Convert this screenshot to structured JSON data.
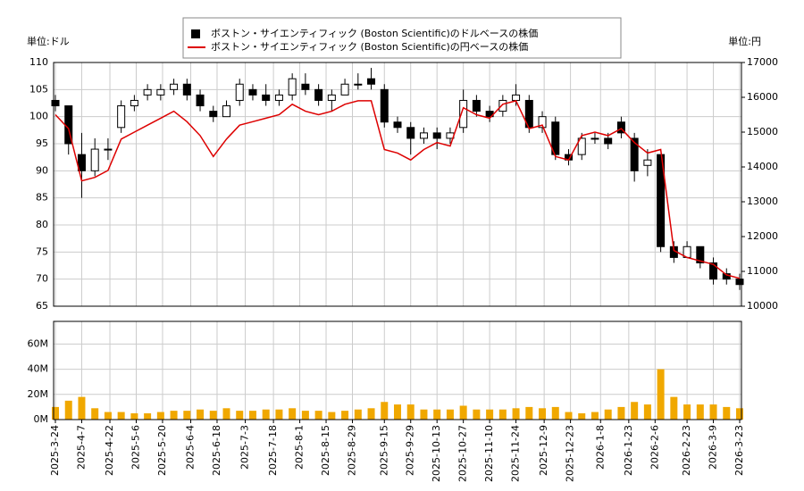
{
  "chart_data": [
    {
      "type": "candlestick",
      "ylabel": "単位:ドル",
      "y2label": "単位:円",
      "x": [
        "2025-3-24",
        "2025-3-31",
        "2025-4-7",
        "2025-4-14",
        "2025-4-21",
        "2025-4-28",
        "2025-5-5",
        "2025-5-12",
        "2025-5-19",
        "2025-5-26",
        "2025-6-2",
        "2025-6-9",
        "2025-6-16",
        "2025-6-23",
        "2025-6-30",
        "2025-7-7",
        "2025-7-14",
        "2025-7-21",
        "2025-7-28",
        "2025-8-4",
        "2025-8-11",
        "2025-8-18",
        "2025-8-25",
        "2025-9-1",
        "2025-9-8",
        "2025-9-15",
        "2025-9-22",
        "2025-9-29",
        "2025-10-6",
        "2025-10-13",
        "2025-10-20",
        "2025-10-27",
        "2025-11-3",
        "2025-11-10",
        "2025-11-17",
        "2025-11-24",
        "2025-12-1",
        "2025-12-8",
        "2025-12-15",
        "2025-12-22",
        "2025-12-29",
        "2026-1-5",
        "2026-1-12",
        "2026-1-19",
        "2026-1-26",
        "2026-2-2",
        "2026-2-9",
        "2026-2-16",
        "2026-2-23",
        "2026-3-2",
        "2026-3-9",
        "2026-3-16",
        "2026-3-23"
      ],
      "xlim": [
        "2025-3-24",
        "2026-3-23"
      ],
      "ylim": [
        65,
        110
      ],
      "yticks": [
        65,
        70,
        75,
        80,
        85,
        90,
        95,
        100,
        105,
        110
      ],
      "y2lim": [
        10000,
        17000
      ],
      "y2ticks": [
        10000,
        11000,
        12000,
        13000,
        14000,
        15000,
        16000,
        17000
      ],
      "grid": true,
      "series": [
        {
          "name": "ボストン・サイエンティフィック (Boston Scientific)のドルベースの株価",
          "color": "#000000",
          "open": [
            103,
            102,
            93,
            90,
            94,
            98,
            102,
            104,
            104,
            105,
            106,
            104,
            101,
            100,
            103,
            105,
            104,
            103,
            104,
            106,
            105,
            103,
            104,
            106,
            107,
            105,
            99,
            98,
            96,
            97,
            96,
            98,
            103,
            101,
            101,
            103,
            103,
            98,
            99,
            93,
            93,
            96,
            96,
            99,
            96,
            91,
            93,
            76,
            74,
            76,
            73,
            71,
            70
          ],
          "high": [
            104,
            102,
            97,
            96,
            96,
            103,
            104,
            106,
            106,
            107,
            107,
            105,
            102,
            103,
            107,
            106,
            106,
            105,
            108,
            108,
            106,
            105,
            107,
            108,
            109,
            106,
            100,
            99,
            98,
            98,
            98,
            105,
            104,
            102,
            104,
            106,
            104,
            101,
            100,
            94,
            97,
            97,
            97,
            100,
            97,
            94,
            93,
            77,
            77,
            76,
            74,
            72,
            71
          ],
          "low": [
            101,
            93,
            85,
            89,
            92,
            97,
            101,
            103,
            103,
            104,
            103,
            101,
            99,
            100,
            102,
            103,
            102,
            102,
            103,
            104,
            102,
            101,
            104,
            105,
            105,
            98,
            97,
            93,
            95,
            94,
            95,
            97,
            100,
            99,
            100,
            102,
            97,
            97,
            92,
            91,
            92,
            95,
            94,
            96,
            88,
            89,
            75,
            73,
            74,
            72,
            69,
            69,
            68
          ],
          "close": [
            102,
            95,
            90,
            94,
            94,
            102,
            103,
            105,
            105,
            106,
            104,
            102,
            100,
            102,
            106,
            104,
            103,
            104,
            107,
            105,
            103,
            104,
            106,
            106,
            106,
            99,
            98,
            96,
            97,
            96,
            97,
            103,
            101,
            100,
            103,
            104,
            98,
            100,
            93,
            92,
            96,
            96,
            95,
            97,
            90,
            92,
            76,
            74,
            76,
            73,
            70,
            70,
            69
          ]
        },
        {
          "name": "ボストン・サイエンティフィック (Boston Scientific)の円ベースの株価",
          "color": "#dd0000",
          "axis": "y2",
          "values": [
            15500,
            15100,
            13600,
            13700,
            13900,
            14800,
            15000,
            15200,
            15400,
            15600,
            15300,
            14900,
            14300,
            14800,
            15200,
            15300,
            15400,
            15500,
            15800,
            15600,
            15500,
            15600,
            15800,
            15900,
            15900,
            14500,
            14400,
            14200,
            14500,
            14700,
            14600,
            15700,
            15500,
            15400,
            15800,
            15900,
            15100,
            15200,
            14300,
            14200,
            14900,
            15000,
            14900,
            15100,
            14700,
            14400,
            14500,
            11600,
            11400,
            11300,
            11200,
            10900,
            10800
          ]
        }
      ]
    },
    {
      "type": "bar",
      "x": [
        "2025-3-24",
        "2025-3-31",
        "2025-4-7",
        "2025-4-14",
        "2025-4-21",
        "2025-4-28",
        "2025-5-5",
        "2025-5-12",
        "2025-5-19",
        "2025-5-26",
        "2025-6-2",
        "2025-6-9",
        "2025-6-16",
        "2025-6-23",
        "2025-6-30",
        "2025-7-7",
        "2025-7-14",
        "2025-7-21",
        "2025-7-28",
        "2025-8-4",
        "2025-8-11",
        "2025-8-18",
        "2025-8-25",
        "2025-9-1",
        "2025-9-8",
        "2025-9-15",
        "2025-9-22",
        "2025-9-29",
        "2025-10-6",
        "2025-10-13",
        "2025-10-20",
        "2025-10-27",
        "2025-11-3",
        "2025-11-10",
        "2025-11-17",
        "2025-11-24",
        "2025-12-1",
        "2025-12-8",
        "2025-12-15",
        "2025-12-22",
        "2025-12-29",
        "2026-1-5",
        "2026-1-12",
        "2026-1-19",
        "2026-1-26",
        "2026-2-2",
        "2026-2-9",
        "2026-2-16",
        "2026-2-23",
        "2026-3-2",
        "2026-3-9",
        "2026-3-16",
        "2026-3-23"
      ],
      "xlim": [
        "2025-3-24",
        "2026-3-23"
      ],
      "values": [
        10000000,
        15000000,
        18000000,
        9000000,
        6000000,
        6000000,
        5000000,
        5000000,
        6000000,
        7000000,
        7000000,
        8000000,
        7000000,
        9000000,
        7000000,
        7000000,
        8000000,
        8000000,
        9000000,
        7000000,
        7000000,
        6000000,
        7000000,
        8000000,
        9000000,
        14000000,
        12000000,
        12000000,
        8000000,
        8000000,
        8000000,
        11000000,
        8000000,
        8000000,
        8000000,
        9000000,
        10000000,
        9000000,
        10000000,
        6000000,
        5000000,
        6000000,
        8000000,
        10000000,
        14000000,
        12000000,
        40000000,
        18000000,
        12000000,
        12000000,
        12000000,
        10000000,
        9000000
      ],
      "color": "#f0a800",
      "ylim": [
        0,
        78000000
      ],
      "yticks": [
        {
          "value": 0,
          "label": "0M"
        },
        {
          "value": 20000000,
          "label": "20M"
        },
        {
          "value": 40000000,
          "label": "40M"
        },
        {
          "value": 60000000,
          "label": "60M"
        }
      ],
      "xticks": [
        "2025-3-24",
        "2025-4-7",
        "2025-4-22",
        "2025-5-6",
        "2025-5-20",
        "2025-6-4",
        "2025-6-18",
        "2025-7-3",
        "2025-7-18",
        "2025-8-1",
        "2025-8-15",
        "2025-8-29",
        "2025-9-15",
        "2025-9-29",
        "2025-10-13",
        "2025-10-27",
        "2025-11-10",
        "2025-11-24",
        "2025-12-9",
        "2025-12-23",
        "2026-1-8",
        "2026-1-23",
        "2026-2-6",
        "2026-2-23",
        "2026-3-9",
        "2026-3-23"
      ],
      "grid": true
    }
  ]
}
